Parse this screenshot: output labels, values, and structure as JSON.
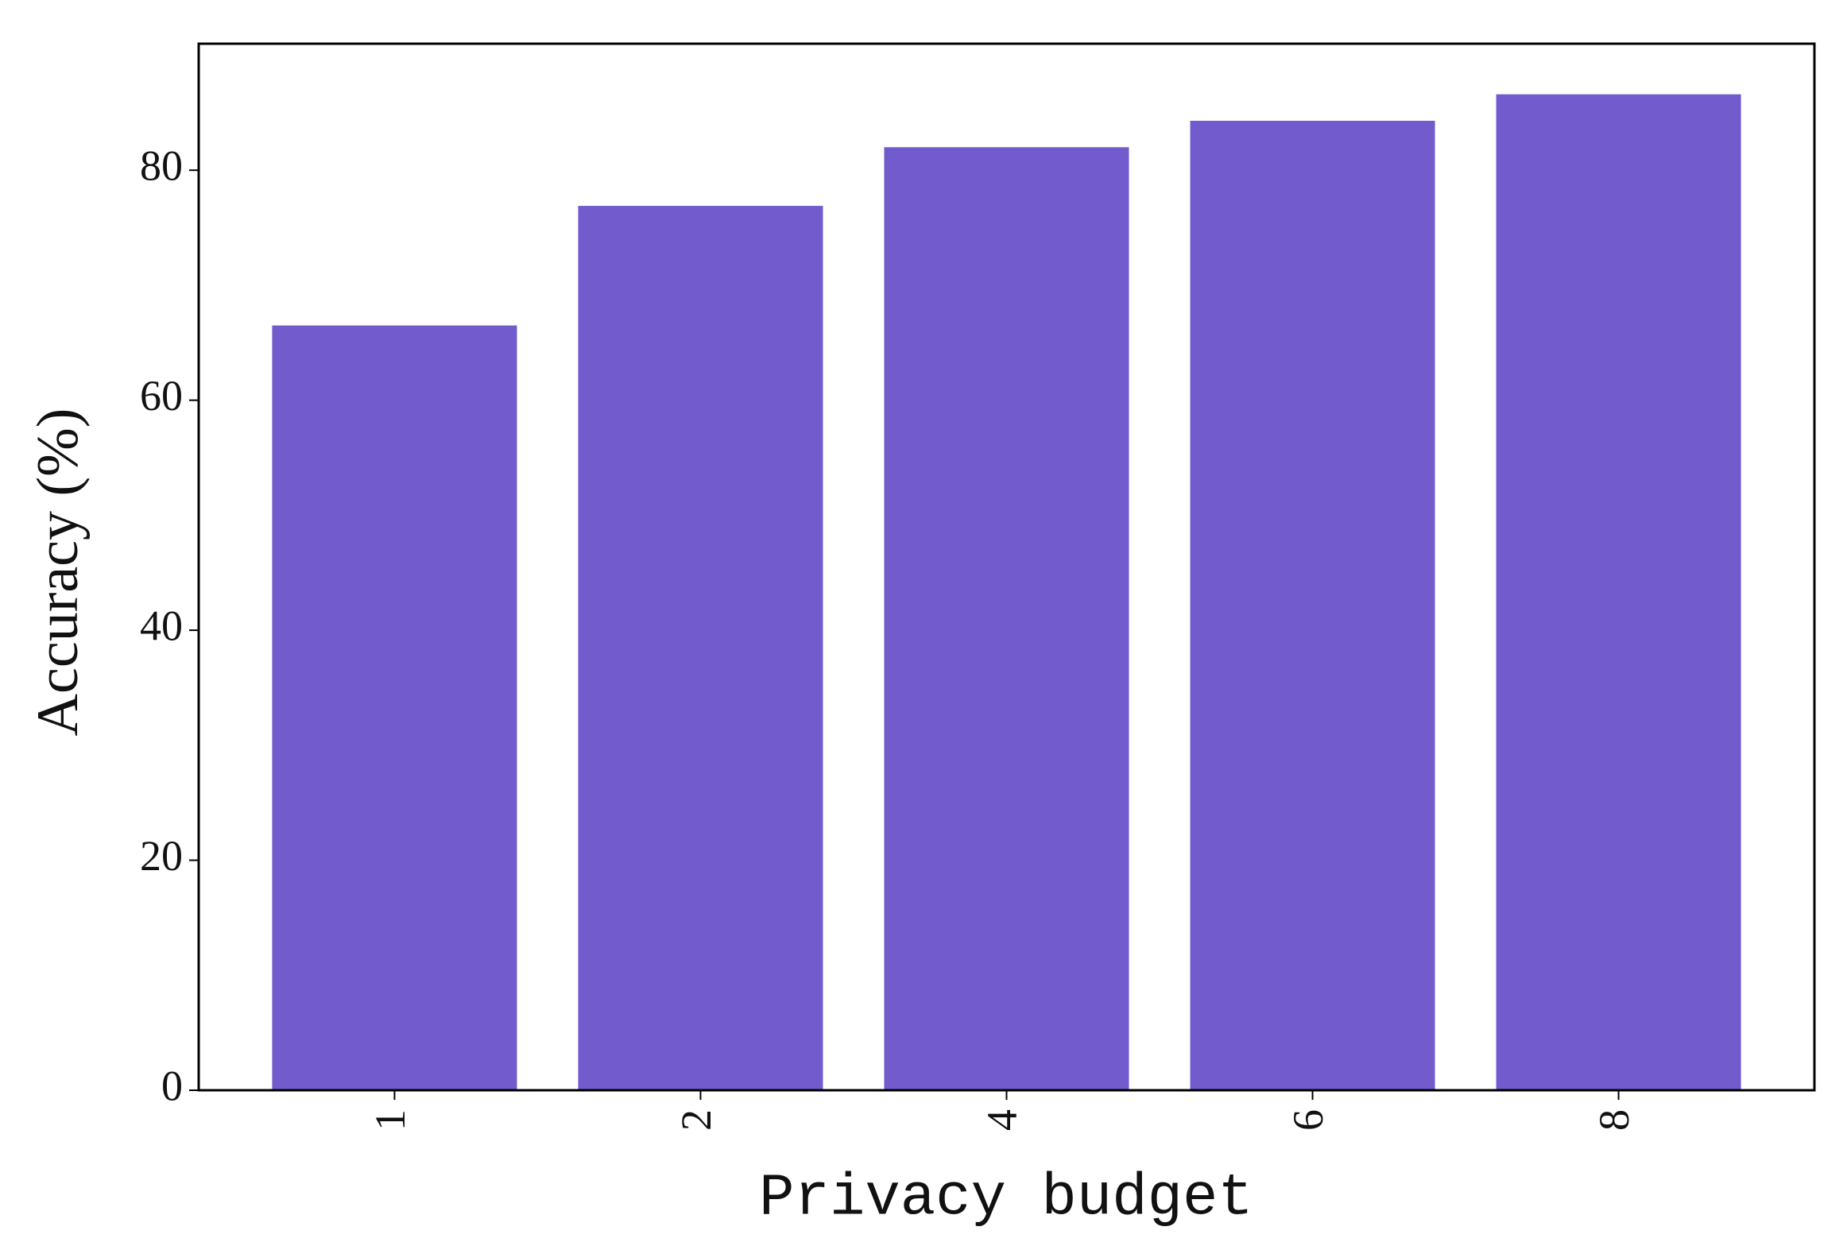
{
  "chart_data": {
    "type": "bar",
    "xlabel": "Privacy budget",
    "ylabel": "Accuracy (%)",
    "categories": [
      "1",
      "2",
      "4",
      "6",
      "8"
    ],
    "values": [
      66.5,
      76.9,
      82.0,
      84.3,
      86.6
    ],
    "color": "#725bcd",
    "ylim": [
      0,
      91
    ],
    "yticks": [
      0,
      20,
      40,
      60,
      80
    ],
    "grid": false
  }
}
